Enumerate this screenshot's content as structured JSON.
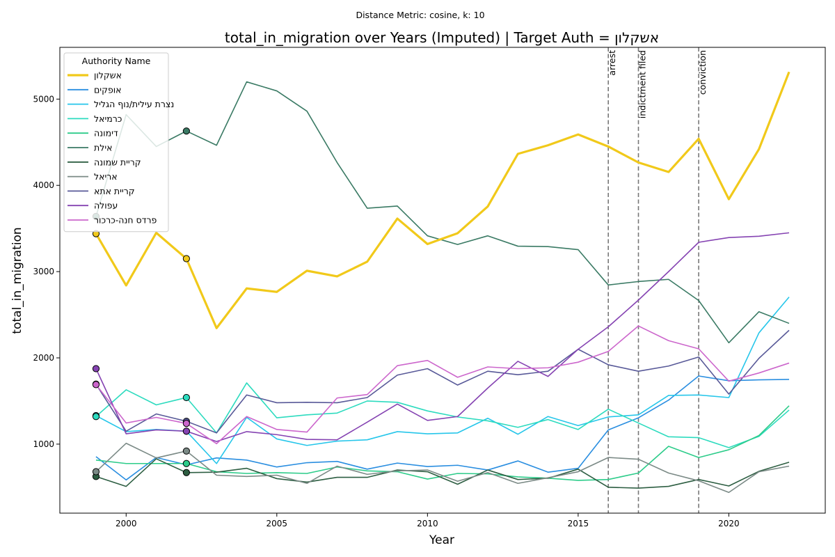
{
  "chart_data": {
    "type": "line",
    "suptitle": "Distance Metric: cosine, k: 10",
    "title": "total_in_migration over Years (Imputed) | Target Auth = אשקלון",
    "xlabel": "Year",
    "ylabel": "total_in_migration",
    "xlim": [
      1997.8,
      2023.2
    ],
    "ylim": [
      200,
      5600
    ],
    "xticks": [
      2000,
      2005,
      2010,
      2015,
      2020
    ],
    "yticks": [
      1000,
      2000,
      3000,
      4000,
      5000
    ],
    "grid": false,
    "legend": {
      "title": "Authority Name",
      "placement": "top-left"
    },
    "x": [
      1999,
      2000,
      2001,
      2002,
      2003,
      2004,
      2005,
      2006,
      2007,
      2008,
      2009,
      2010,
      2011,
      2012,
      2013,
      2014,
      2015,
      2016,
      2017,
      2018,
      2019,
      2020,
      2021,
      2022
    ],
    "series": [
      {
        "name": "אשקלון",
        "color": "#f1c91a",
        "width": 3.2,
        "values": [
          3440,
          2840,
          3450,
          3150,
          2345,
          2805,
          2765,
          3010,
          2945,
          3115,
          3615,
          3320,
          3445,
          3755,
          4365,
          4465,
          4590,
          4450,
          4265,
          4155,
          4540,
          3840,
          4420,
          5315
        ],
        "imputed": [
          1999,
          2002
        ]
      },
      {
        "name": "אופקים",
        "color": "#2a8ee0",
        "width": 1.6,
        "values": [
          855,
          585,
          845,
          760,
          840,
          815,
          735,
          785,
          800,
          710,
          780,
          740,
          755,
          700,
          805,
          675,
          720,
          1165,
          1305,
          1510,
          1790,
          1735,
          1745,
          1750
        ],
        "imputed": []
      },
      {
        "name": "נצרת עילית/נוף הגליל",
        "color": "#26c6ea",
        "width": 1.6,
        "values": [
          1330,
          1145,
          1170,
          1150,
          775,
          1310,
          1060,
          985,
          1035,
          1050,
          1145,
          1120,
          1130,
          1300,
          1115,
          1320,
          1215,
          1315,
          1340,
          1565,
          1570,
          1540,
          2290,
          2705
        ],
        "imputed": [
          1999,
          2002
        ]
      },
      {
        "name": "כרמיאל",
        "color": "#2ddbbf",
        "width": 1.6,
        "values": [
          1320,
          1630,
          1455,
          1540,
          1130,
          1710,
          1305,
          1340,
          1360,
          1500,
          1485,
          1385,
          1315,
          1270,
          1195,
          1285,
          1170,
          1405,
          1245,
          1085,
          1075,
          960,
          1090,
          1395
        ],
        "imputed": [
          1999,
          2002
        ]
      },
      {
        "name": "דימונה",
        "color": "#2dcc8a",
        "width": 1.6,
        "values": [
          815,
          775,
          775,
          775,
          680,
          660,
          670,
          660,
          735,
          690,
          680,
          595,
          660,
          655,
          620,
          605,
          580,
          590,
          665,
          975,
          845,
          935,
          1100,
          1445
        ],
        "imputed": [
          2002
        ]
      },
      {
        "name": "אילת",
        "color": "#3a7a64",
        "width": 1.6,
        "values": [
          3640,
          4820,
          4450,
          4630,
          4465,
          5200,
          5095,
          4860,
          4265,
          3735,
          3760,
          3415,
          3315,
          3415,
          3295,
          3290,
          3255,
          2845,
          2885,
          2910,
          2665,
          2175,
          2535,
          2400
        ],
        "imputed": [
          1999,
          2002
        ]
      },
      {
        "name": "קריית שמונה",
        "color": "#2d5e42",
        "width": 1.6,
        "values": [
          625,
          510,
          830,
          670,
          675,
          720,
          600,
          560,
          615,
          615,
          700,
          680,
          535,
          700,
          590,
          605,
          710,
          500,
          490,
          510,
          590,
          515,
          685,
          790
        ],
        "imputed": [
          1999,
          2002
        ]
      },
      {
        "name": "אריאל",
        "color": "#7b8a86",
        "width": 1.6,
        "values": [
          680,
          1010,
          840,
          920,
          640,
          625,
          640,
          545,
          745,
          650,
          690,
          700,
          570,
          670,
          545,
          610,
          680,
          845,
          825,
          665,
          575,
          440,
          680,
          745
        ],
        "imputed": [
          1999,
          2002
        ]
      },
      {
        "name": "קריית אתא",
        "color": "#585998",
        "width": 1.6,
        "values": [
          1695,
          1150,
          1350,
          1265,
          1130,
          1570,
          1480,
          1485,
          1480,
          1540,
          1800,
          1875,
          1685,
          1845,
          1805,
          1845,
          2100,
          1920,
          1845,
          1905,
          2010,
          1580,
          1995,
          2320
        ],
        "imputed": [
          1999,
          2002
        ]
      },
      {
        "name": "עפולה",
        "color": "#8543b2",
        "width": 1.6,
        "values": [
          1875,
          1120,
          1165,
          1150,
          1030,
          1145,
          1110,
          1055,
          1050,
          1255,
          1465,
          1275,
          1320,
          1650,
          1960,
          1785,
          2100,
          2360,
          2670,
          3000,
          3340,
          3395,
          3410,
          3450
        ],
        "imputed": [
          1999,
          2002
        ]
      },
      {
        "name": "פרדס חנה-כרכור",
        "color": "#cc66cc",
        "width": 1.6,
        "values": [
          1690,
          1245,
          1310,
          1240,
          1005,
          1320,
          1170,
          1140,
          1535,
          1575,
          1910,
          1970,
          1775,
          1895,
          1875,
          1885,
          1950,
          2075,
          2370,
          2200,
          2105,
          1730,
          1825,
          1940
        ],
        "imputed": [
          1999,
          2002
        ]
      }
    ],
    "events": [
      {
        "year": 2016,
        "label": "arrest"
      },
      {
        "year": 2017,
        "label": "indictment filed"
      },
      {
        "year": 2019,
        "label": "conviction"
      }
    ]
  }
}
